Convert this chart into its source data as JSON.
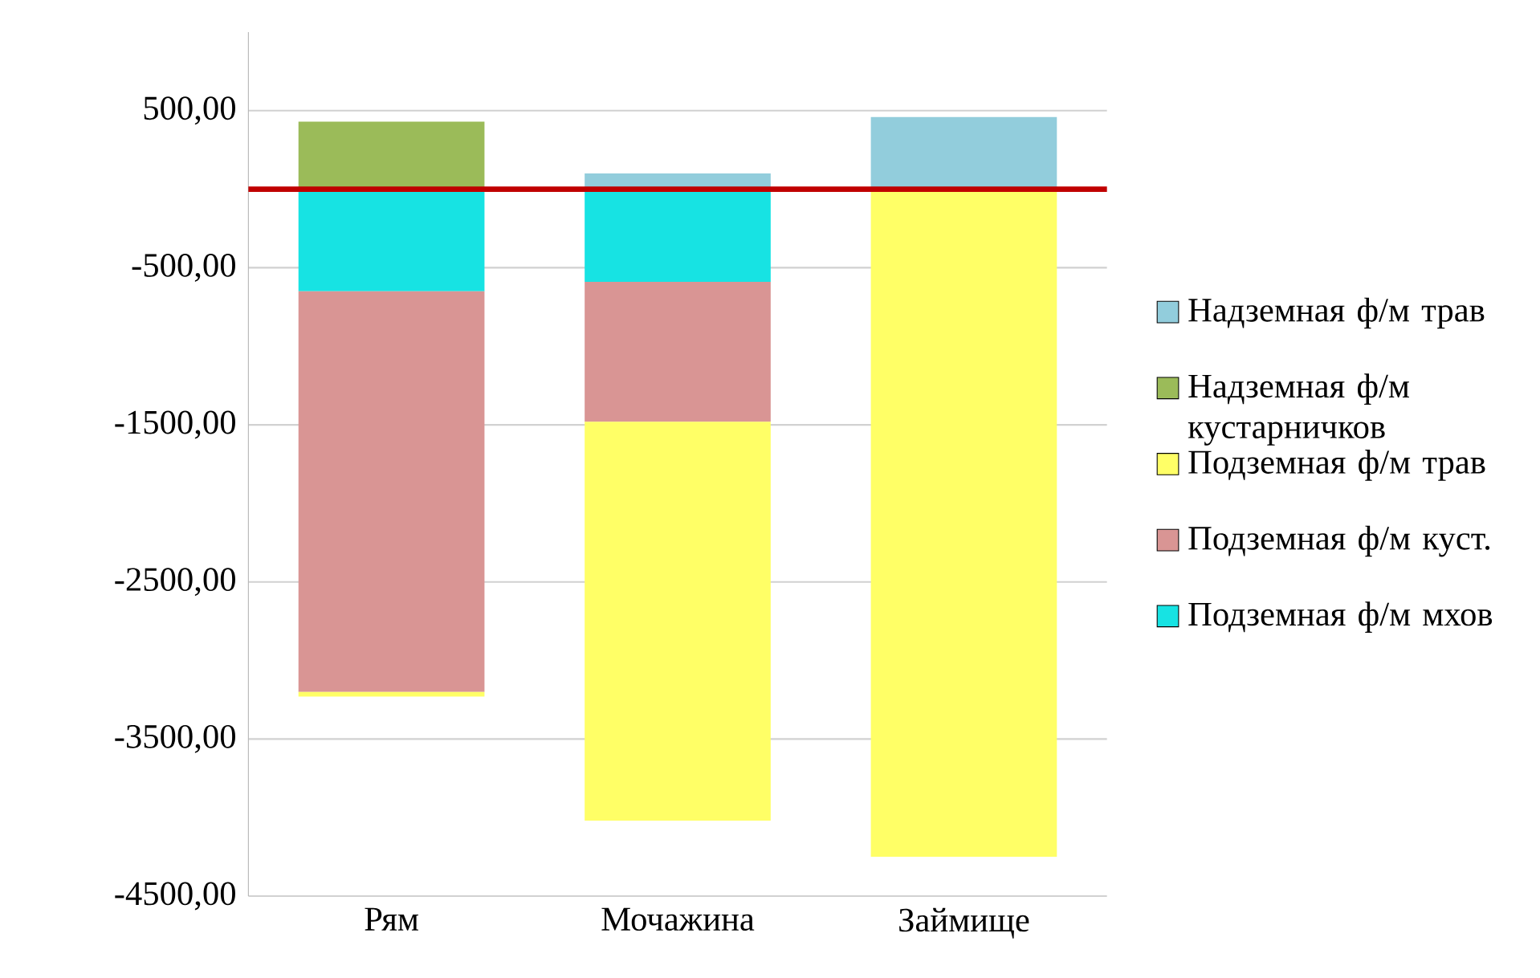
{
  "chart_data": {
    "type": "bar",
    "stacked": true,
    "categories": [
      "Рям",
      "Мочажина",
      "Займище"
    ],
    "series": [
      {
        "name": "Подземная ф/м мхов",
        "color": "#17e3e3",
        "values": [
          -650,
          -590,
          null
        ]
      },
      {
        "name": "Подземная ф/м куст.",
        "color": "#d99594",
        "values": [
          -2550,
          -890,
          null
        ]
      },
      {
        "name": "Подземная ф/м трав",
        "color": "#ffff66",
        "values": [
          -30,
          -2540,
          -4250
        ]
      },
      {
        "name": "Надземная ф/м кустарничков",
        "color": "#9bbb59",
        "values": [
          430,
          null,
          null
        ]
      },
      {
        "name": "Надземная ф/м трав",
        "color": "#92cddc",
        "values": [
          null,
          100,
          460
        ]
      }
    ],
    "ylim": [
      -4500,
      1000
    ],
    "yticks": [
      {
        "value": 500,
        "label": "500,00"
      },
      {
        "value": -500,
        "label": "-500,00"
      },
      {
        "value": -1500,
        "label": "-1500,00"
      },
      {
        "value": -2500,
        "label": "-2500,00"
      },
      {
        "value": -3500,
        "label": "-3500,00"
      },
      {
        "value": -4500,
        "label": "-4500,00"
      }
    ],
    "grid": "y",
    "legend": "right",
    "ref_lines": [
      {
        "axis": "y",
        "value": 0,
        "color": "#c00000"
      }
    ]
  }
}
